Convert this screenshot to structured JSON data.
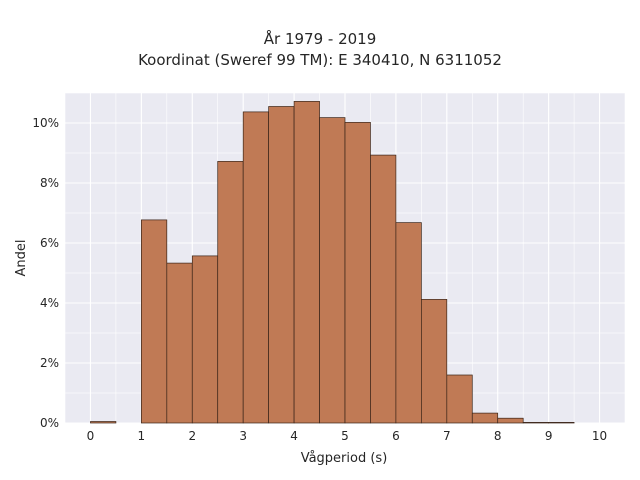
{
  "chart_data": {
    "type": "bar",
    "title": "År 1979 - 2019",
    "subtitle": "Koordinat (Sweref 99 TM): E 340410, N 6311052",
    "xlabel": "Vågperiod (s)",
    "ylabel": "Andel",
    "xlim": [
      -0.5,
      10.5
    ],
    "ylim": [
      0,
      11
    ],
    "x_ticks": [
      0,
      1,
      2,
      3,
      4,
      5,
      6,
      7,
      8,
      9,
      10
    ],
    "x_tick_labels": [
      "0",
      "1",
      "2",
      "3",
      "4",
      "5",
      "6",
      "7",
      "8",
      "9",
      "10"
    ],
    "y_ticks": [
      0,
      2,
      4,
      6,
      8,
      10
    ],
    "y_tick_labels": [
      "0%",
      "2%",
      "4%",
      "6%",
      "8%",
      "10%"
    ],
    "bin_width": 0.5,
    "bins": [
      {
        "x0": 0.0,
        "value": 0.05
      },
      {
        "x0": 0.5,
        "value": 0.0
      },
      {
        "x0": 1.0,
        "value": 6.77
      },
      {
        "x0": 1.5,
        "value": 5.33
      },
      {
        "x0": 2.0,
        "value": 5.57
      },
      {
        "x0": 2.5,
        "value": 8.72
      },
      {
        "x0": 3.0,
        "value": 10.37
      },
      {
        "x0": 3.5,
        "value": 10.55
      },
      {
        "x0": 4.0,
        "value": 10.72
      },
      {
        "x0": 4.5,
        "value": 10.18
      },
      {
        "x0": 5.0,
        "value": 10.02
      },
      {
        "x0": 5.5,
        "value": 8.93
      },
      {
        "x0": 6.0,
        "value": 6.68
      },
      {
        "x0": 6.5,
        "value": 4.12
      },
      {
        "x0": 7.0,
        "value": 1.6
      },
      {
        "x0": 7.5,
        "value": 0.33
      },
      {
        "x0": 8.0,
        "value": 0.16
      },
      {
        "x0": 8.5,
        "value": 0.02
      },
      {
        "x0": 9.0,
        "value": 0.02
      },
      {
        "x0": 9.5,
        "value": 0.0
      }
    ],
    "bar_color": "#c07a55",
    "bar_edge_color": "#3a2418",
    "plot_background": "#eaeaf2",
    "grid": true
  }
}
